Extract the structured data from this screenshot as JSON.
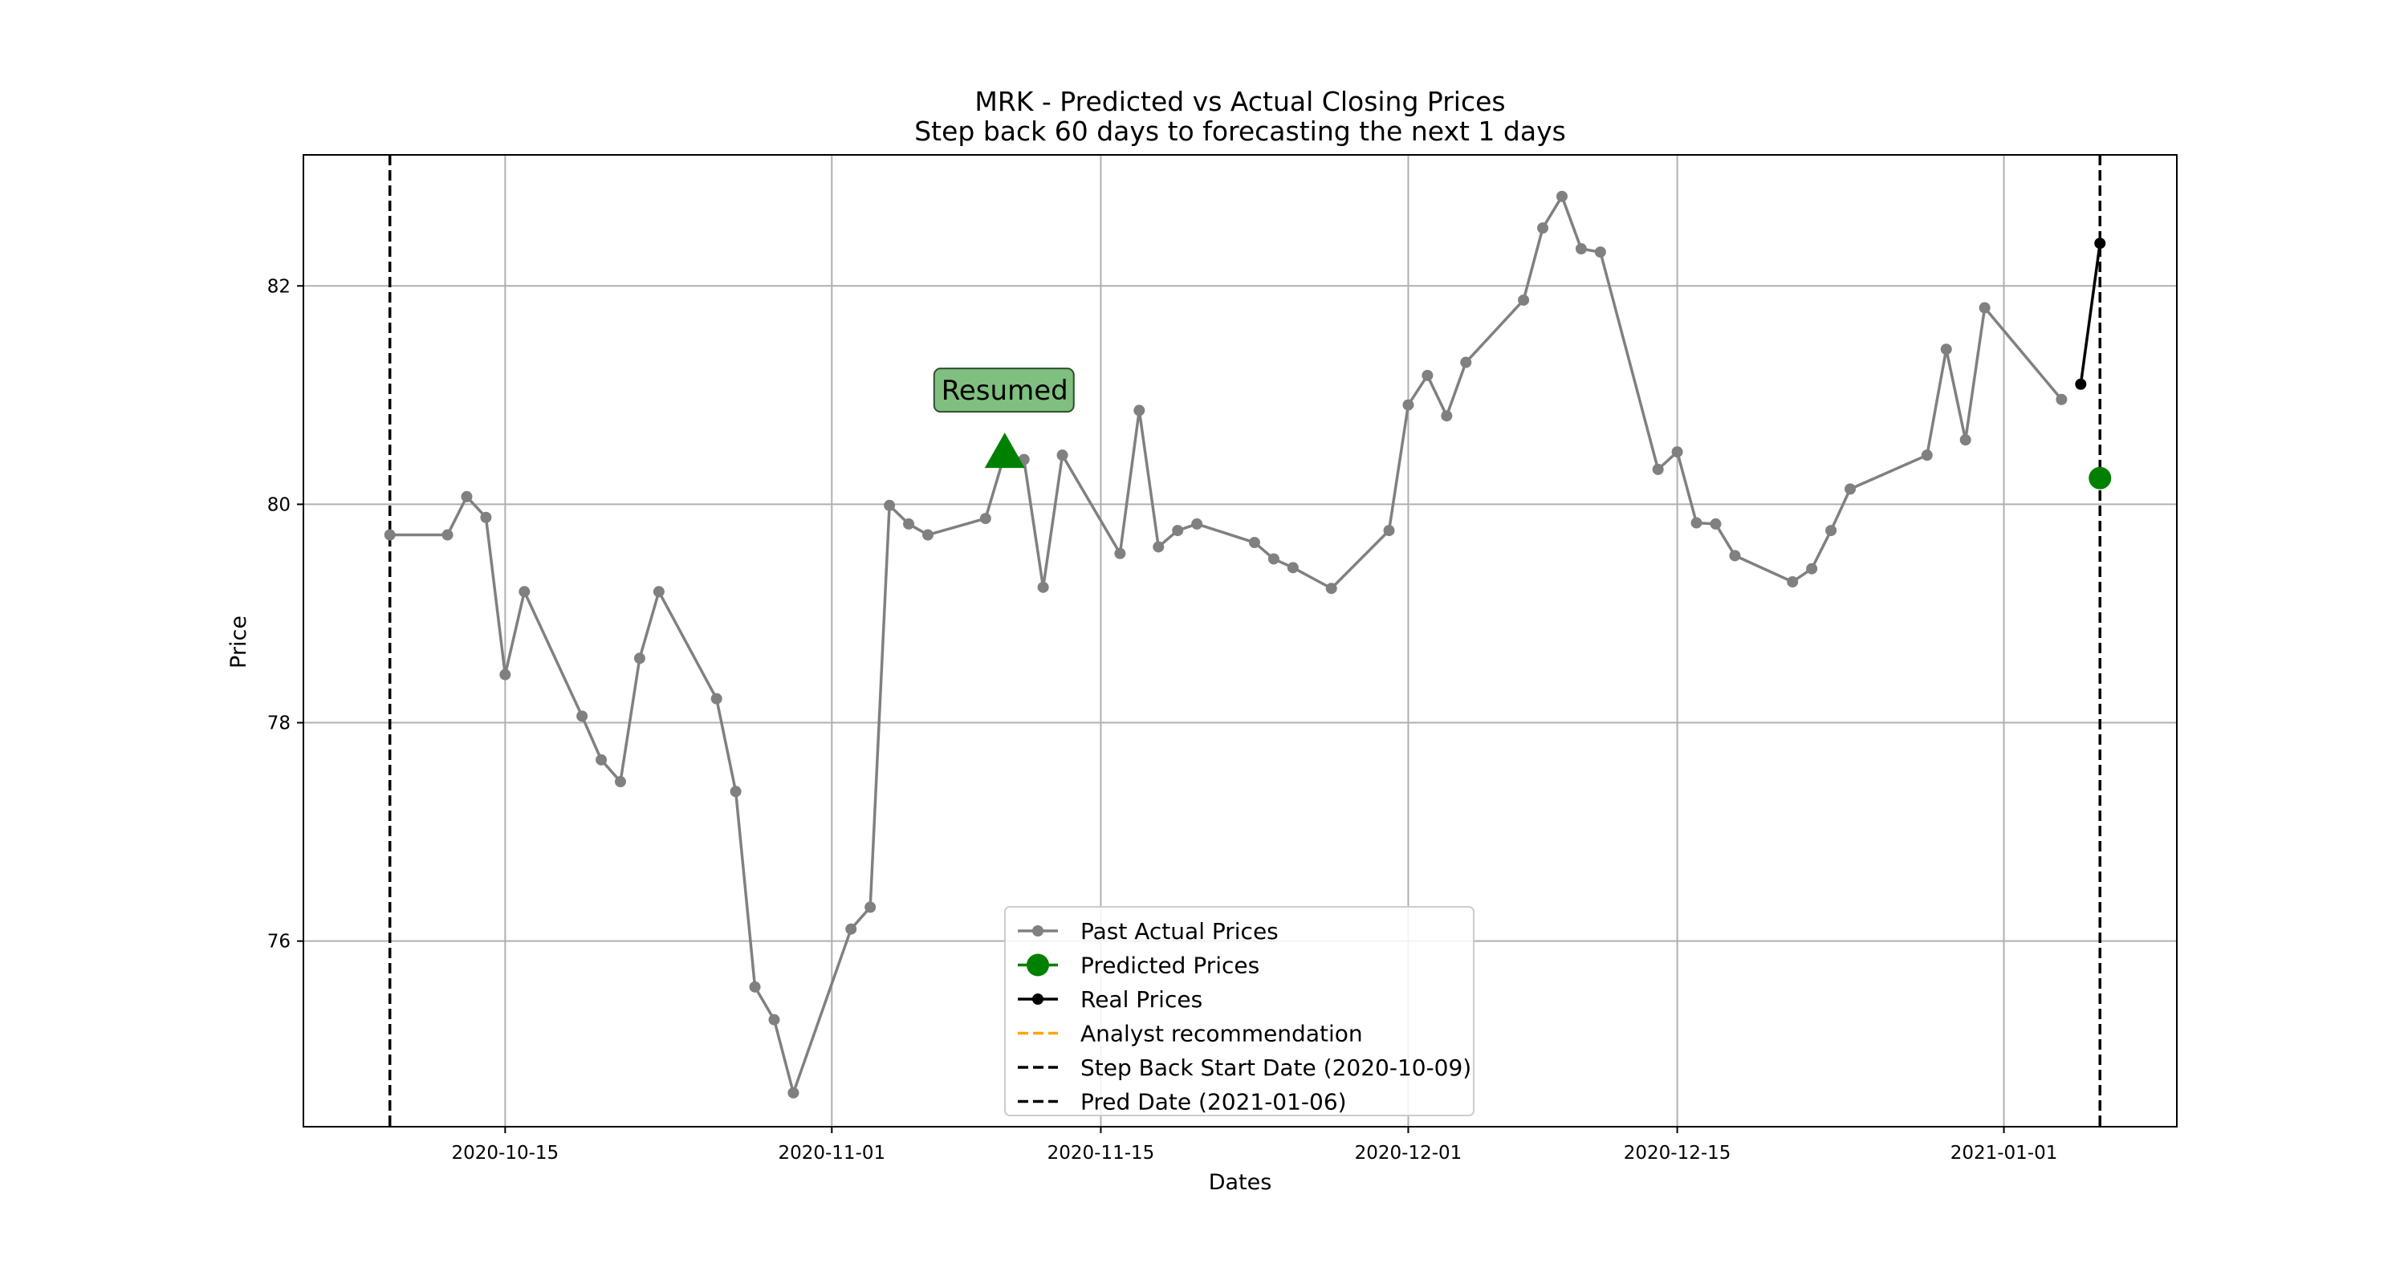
{
  "chart_data": {
    "type": "line",
    "title": "MRK - Predicted vs Actual Closing Prices",
    "subtitle": "Step back 60 days to forecasting the next 1 days",
    "xlabel": "Dates",
    "ylabel": "Price",
    "xlim": [
      "2020-10-04T12:00",
      "2021-01-10"
    ],
    "ylim": [
      74.3,
      83.2
    ],
    "x_ticks": [
      "2020-10-15",
      "2020-11-01",
      "2020-11-15",
      "2020-12-01",
      "2020-12-15",
      "2021-01-01"
    ],
    "y_ticks": [
      76,
      78,
      80,
      82
    ],
    "grid": true,
    "legend_position": "bottom-center",
    "series": [
      {
        "name": "Past Actual Prices",
        "color": "#808080",
        "marker": "circle",
        "x": [
          "2020-10-09",
          "2020-10-12",
          "2020-10-13",
          "2020-10-14",
          "2020-10-15",
          "2020-10-16",
          "2020-10-19",
          "2020-10-20",
          "2020-10-21",
          "2020-10-22",
          "2020-10-23",
          "2020-10-26",
          "2020-10-27",
          "2020-10-28",
          "2020-10-29",
          "2020-10-30",
          "2020-11-02",
          "2020-11-03",
          "2020-11-04",
          "2020-11-05",
          "2020-11-06",
          "2020-11-09",
          "2020-11-10",
          "2020-11-11",
          "2020-11-12",
          "2020-11-13",
          "2020-11-16",
          "2020-11-17",
          "2020-11-18",
          "2020-11-19",
          "2020-11-20",
          "2020-11-23",
          "2020-11-24",
          "2020-11-25",
          "2020-11-27",
          "2020-11-30",
          "2020-12-01",
          "2020-12-02",
          "2020-12-03",
          "2020-12-04",
          "2020-12-07",
          "2020-12-08",
          "2020-12-09",
          "2020-12-10",
          "2020-12-11",
          "2020-12-14",
          "2020-12-15",
          "2020-12-16",
          "2020-12-17",
          "2020-12-18",
          "2020-12-21",
          "2020-12-22",
          "2020-12-23",
          "2020-12-24",
          "2020-12-28",
          "2020-12-29",
          "2020-12-30",
          "2020-12-31",
          "2021-01-04"
        ],
        "y": [
          79.72,
          79.72,
          80.07,
          79.88,
          78.44,
          79.2,
          78.06,
          77.66,
          77.46,
          78.59,
          79.2,
          78.22,
          77.37,
          75.58,
          75.28,
          74.61,
          76.11,
          76.31,
          79.99,
          79.82,
          79.72,
          79.87,
          80.46,
          80.41,
          79.24,
          80.45,
          79.55,
          80.86,
          79.61,
          79.76,
          79.82,
          79.65,
          79.5,
          79.42,
          79.23,
          79.76,
          80.91,
          81.18,
          80.81,
          81.3,
          81.87,
          82.53,
          82.82,
          82.34,
          82.31,
          80.32,
          80.48,
          79.83,
          79.82,
          79.53,
          79.29,
          79.41,
          79.76,
          80.14,
          80.45,
          81.42,
          80.59,
          81.8,
          80.96
        ]
      },
      {
        "name": "Predicted Prices",
        "color": "#008000",
        "marker": "circle",
        "x": [
          "2021-01-06"
        ],
        "y": [
          80.24
        ]
      },
      {
        "name": "Real Prices",
        "color": "#000000",
        "marker": "circle",
        "x": [
          "2021-01-05",
          "2021-01-06"
        ],
        "y": [
          81.1,
          82.39
        ]
      },
      {
        "name": "Analyst recommendation",
        "color": "#FFA500",
        "line_style": "dashed",
        "x": [],
        "y": []
      }
    ],
    "vertical_lines": [
      {
        "name": "Step Back Start Date (2020-10-09)",
        "x": "2020-10-09",
        "color": "#000000",
        "line_style": "dashed"
      },
      {
        "name": "Pred Date (2021-01-06)",
        "x": "2021-01-06",
        "color": "#000000",
        "line_style": "dashed"
      }
    ],
    "annotations": [
      {
        "text": "Resumed",
        "x": "2020-11-10",
        "y": 80.45,
        "marker": "triangle-up",
        "marker_color": "#008000",
        "box_color": "#7FBF7F"
      }
    ]
  }
}
